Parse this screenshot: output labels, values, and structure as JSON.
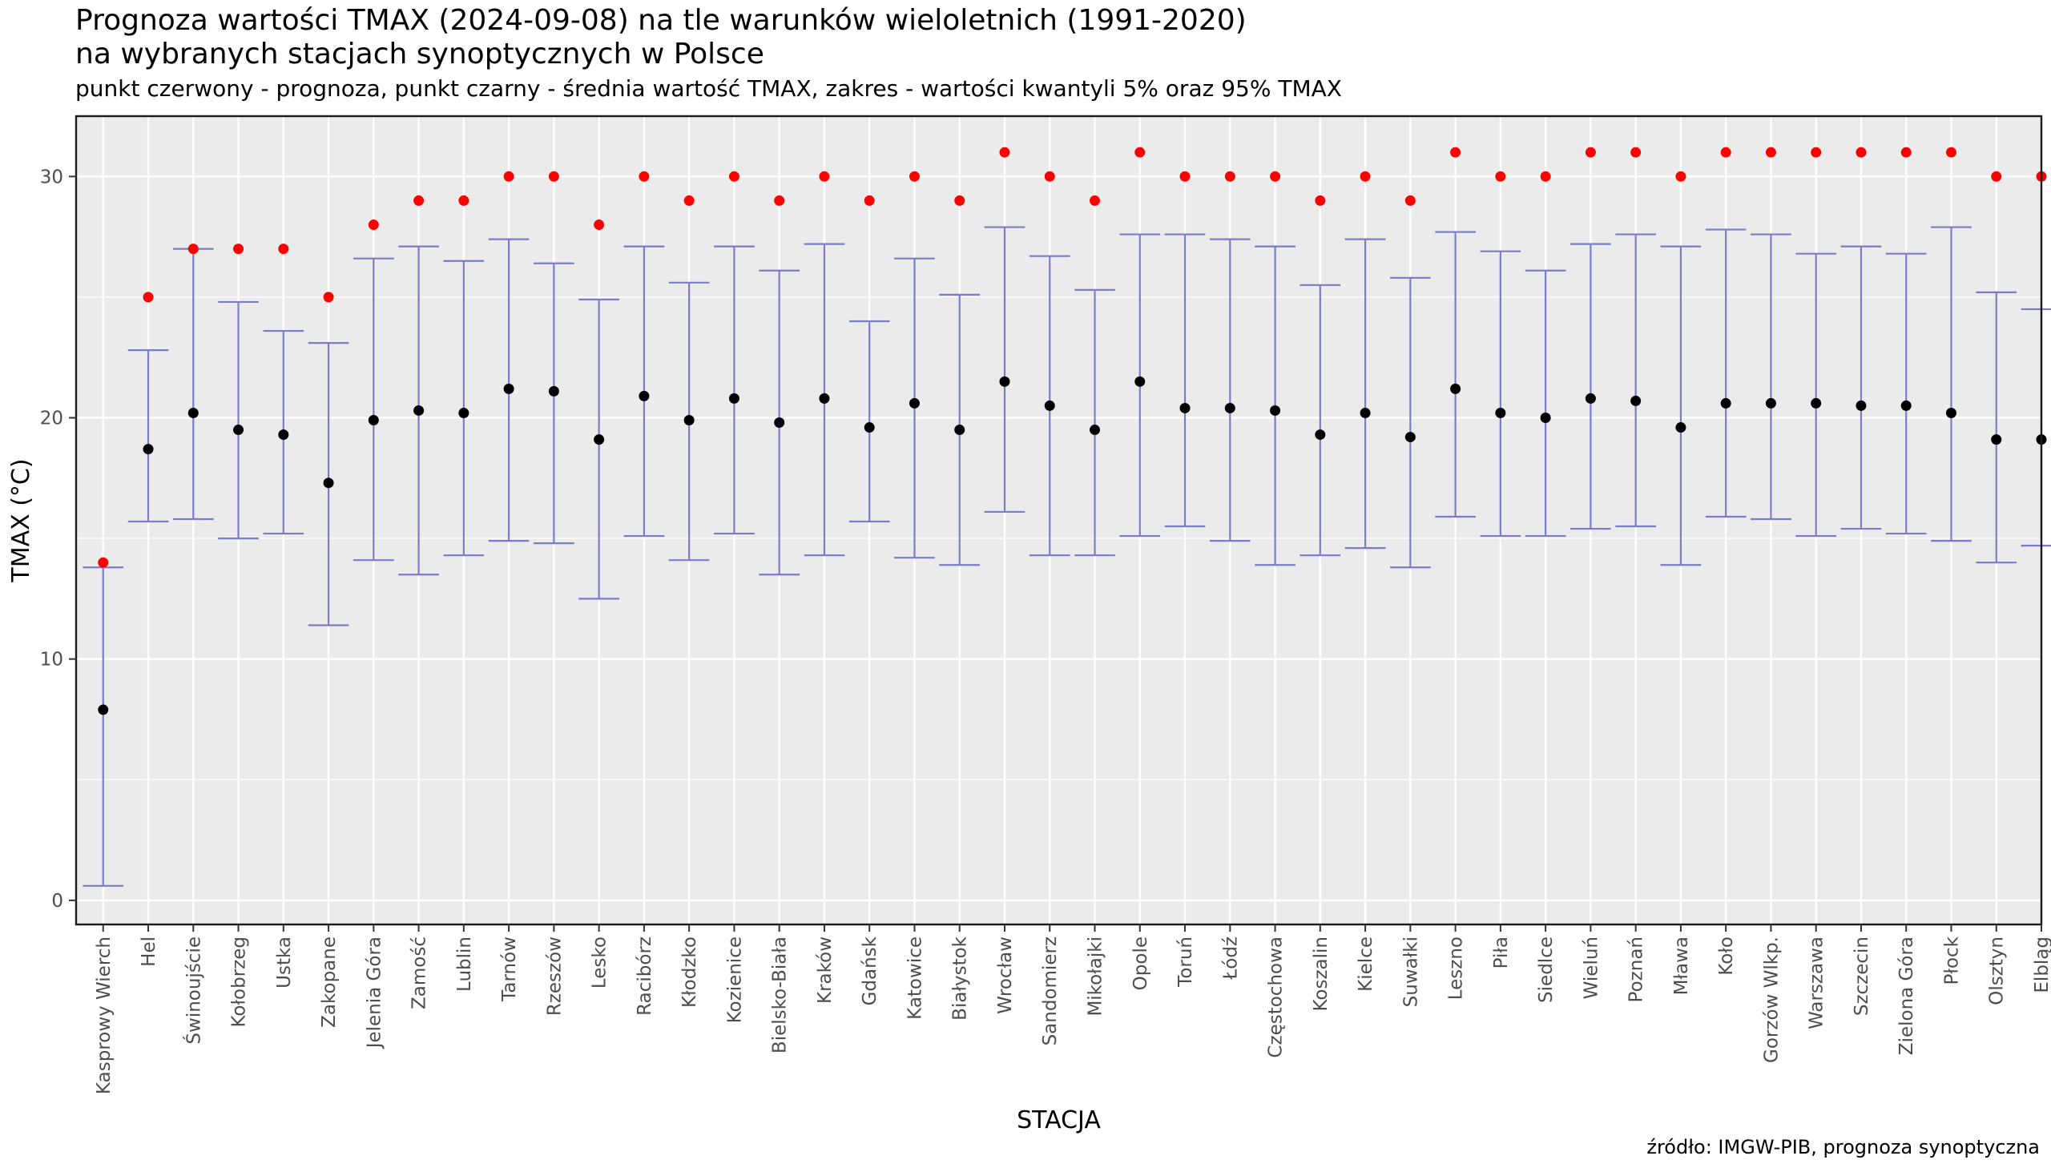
{
  "title_line1": "Prognoza wartości TMAX (2024-09-08) na tle warunków wieloletnich (1991-2020)",
  "title_line2": "na wybranych stacjach synoptycznych w Polsce",
  "subtitle": "punkt czerwony - prognoza, punkt czarny - średnia wartość TMAX, zakres - wartości kwantyli 5% oraz 95% TMAX",
  "caption": "źródło: IMGW-PIB, prognoza synoptyczna",
  "colors": {
    "panel_bg": "#ebebeb",
    "grid": "#ffffff",
    "range": "#7b7bc8",
    "mean": "#000000",
    "forecast": "#ff0000"
  },
  "chart_data": {
    "type": "errorbar",
    "xlabel": "STACJA",
    "ylabel": "TMAX (°C)",
    "ylim": [
      -1,
      32.5
    ],
    "yticks": [
      0,
      10,
      20,
      30
    ],
    "grid": true,
    "categories": [
      "Kasprowy Wierch",
      "Hel",
      "Świnoujście",
      "Kołobrzeg",
      "Ustka",
      "Zakopane",
      "Jelenia Góra",
      "Zamość",
      "Lublin",
      "Tarnów",
      "Rzeszów",
      "Lesko",
      "Racibórz",
      "Kłodzko",
      "Kozienice",
      "Bielsko-Biała",
      "Kraków",
      "Gdańsk",
      "Katowice",
      "Białystok",
      "Wrocław",
      "Sandomierz",
      "Mikołajki",
      "Opole",
      "Toruń",
      "Łódź",
      "Częstochowa",
      "Koszalin",
      "Kielce",
      "Suwałki",
      "Leszno",
      "Piła",
      "Siedlce",
      "Wieluń",
      "Poznań",
      "Mława",
      "Koło",
      "Gorzów Wlkp.",
      "Warszawa",
      "Szczecin",
      "Zielona Góra",
      "Płock",
      "Olsztyn",
      "Elbląg"
    ],
    "series": [
      {
        "name": "prognoza",
        "values": [
          14,
          25,
          27,
          27,
          27,
          25,
          28,
          29,
          29,
          30,
          30,
          28,
          30,
          29,
          30,
          29,
          30,
          29,
          30,
          29,
          31,
          30,
          29,
          31,
          30,
          30,
          30,
          29,
          30,
          29,
          31,
          30,
          30,
          31,
          31,
          30,
          31,
          31,
          31,
          31,
          31,
          31,
          30,
          30
        ]
      },
      {
        "name": "średnia wartość TMAX",
        "values": [
          7.9,
          18.7,
          20.2,
          19.5,
          19.3,
          17.3,
          19.9,
          20.3,
          20.2,
          21.2,
          21.1,
          19.1,
          20.9,
          19.9,
          20.8,
          19.8,
          20.8,
          19.6,
          20.6,
          19.5,
          21.5,
          20.5,
          19.5,
          21.5,
          20.4,
          20.4,
          20.3,
          19.3,
          20.2,
          19.2,
          21.2,
          20.2,
          20.0,
          20.8,
          20.7,
          19.6,
          20.6,
          20.6,
          20.6,
          20.5,
          20.5,
          20.2,
          19.1,
          19.1
        ]
      },
      {
        "name": "kwantyl 5% TMAX",
        "values": [
          0.6,
          15.7,
          15.8,
          15.0,
          15.2,
          11.4,
          14.1,
          13.5,
          14.3,
          14.9,
          14.8,
          12.5,
          15.1,
          14.1,
          15.2,
          13.5,
          14.3,
          15.7,
          14.2,
          13.9,
          16.1,
          14.3,
          14.3,
          15.1,
          15.5,
          14.9,
          13.9,
          14.3,
          14.6,
          13.8,
          15.9,
          15.1,
          15.1,
          15.4,
          15.5,
          13.9,
          15.9,
          15.8,
          15.1,
          15.4,
          15.2,
          14.9,
          14.0,
          14.7
        ]
      },
      {
        "name": "kwantyl 95% TMAX",
        "values": [
          13.8,
          22.8,
          27.0,
          24.8,
          23.6,
          23.1,
          26.6,
          27.1,
          26.5,
          27.4,
          26.4,
          24.9,
          27.1,
          25.6,
          27.1,
          26.1,
          27.2,
          24.0,
          26.6,
          25.1,
          27.9,
          26.7,
          25.3,
          27.6,
          27.6,
          27.4,
          27.1,
          25.5,
          27.4,
          25.8,
          27.7,
          26.9,
          26.1,
          27.2,
          27.6,
          27.1,
          27.8,
          27.6,
          26.8,
          27.1,
          26.8,
          27.9,
          25.2,
          24.5
        ]
      }
    ]
  }
}
